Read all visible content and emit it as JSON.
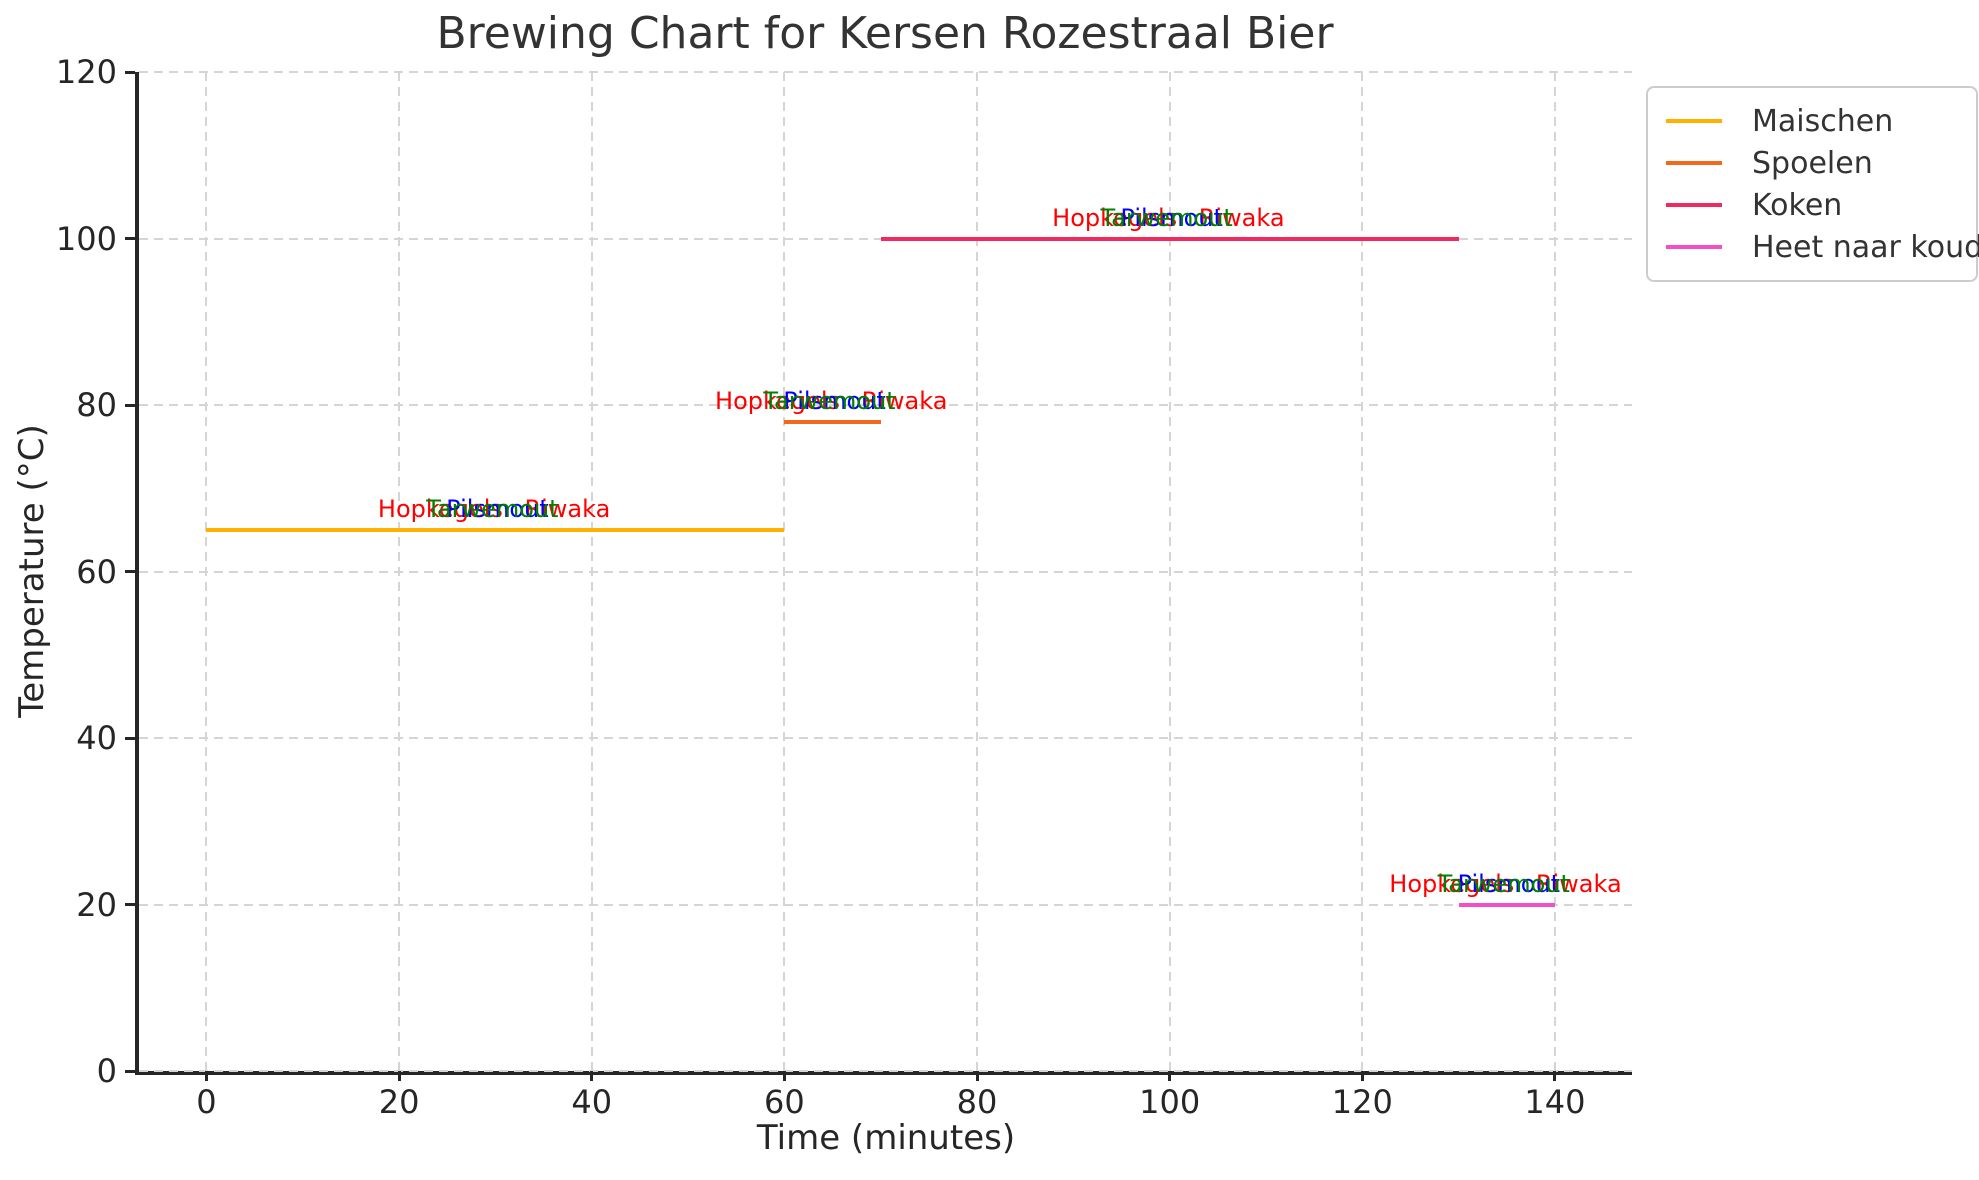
{
  "chart_data": {
    "type": "line",
    "title": "Brewing Chart for Kersen Rozestraal Bier",
    "xlabel": "Time (minutes)",
    "ylabel": "Temperature (°C)",
    "xlim": [
      -7,
      148
    ],
    "ylim": [
      0,
      120
    ],
    "x_ticks": [
      0,
      20,
      40,
      60,
      80,
      100,
      120,
      140
    ],
    "y_ticks": [
      0,
      20,
      40,
      60,
      80,
      100,
      120
    ],
    "grid": true,
    "grid_style": "dashed",
    "legend_position": "upper right",
    "series": [
      {
        "name": "Maischen",
        "color": "#FFB000",
        "x": [
          0,
          60
        ],
        "y": [
          65,
          65
        ]
      },
      {
        "name": "Spoelen",
        "color": "#F2691C",
        "x": [
          60,
          70
        ],
        "y": [
          78,
          78
        ]
      },
      {
        "name": "Koken",
        "color": "#EE2A5E",
        "x": [
          70,
          130
        ],
        "y": [
          100,
          100
        ]
      },
      {
        "name": "Heet naar koud",
        "color": "#F44FC6",
        "x": [
          130,
          140
        ],
        "y": [
          20,
          20
        ]
      }
    ],
    "annotations": [
      {
        "x": 30,
        "y": 65,
        "ingredients": [
          {
            "text": "Hopkegels",
            "color": "#FF0000"
          },
          {
            "text": "Riwaka",
            "color": "#FF0000"
          },
          {
            "text": "Pilsmout",
            "color": "#0000FF"
          },
          {
            "text": "Tarwemout",
            "color": "#008000"
          }
        ]
      },
      {
        "x": 65,
        "y": 78,
        "ingredients": [
          {
            "text": "Hopkegels",
            "color": "#FF0000"
          },
          {
            "text": "Riwaka",
            "color": "#FF0000"
          },
          {
            "text": "Pilsmout",
            "color": "#0000FF"
          },
          {
            "text": "Tarwemout",
            "color": "#008000"
          }
        ]
      },
      {
        "x": 100,
        "y": 100,
        "ingredients": [
          {
            "text": "Hopkegels",
            "color": "#FF0000"
          },
          {
            "text": "Riwaka",
            "color": "#FF0000"
          },
          {
            "text": "Pilsmout",
            "color": "#0000FF"
          },
          {
            "text": "Tarwemout",
            "color": "#008000"
          }
        ]
      },
      {
        "x": 135,
        "y": 20,
        "ingredients": [
          {
            "text": "Hopkegels",
            "color": "#FF0000"
          },
          {
            "text": "Riwaka",
            "color": "#FF0000"
          },
          {
            "text": "Pilsmout",
            "color": "#0000FF"
          },
          {
            "text": "Tarwemout",
            "color": "#008000"
          }
        ]
      }
    ],
    "legend": [
      "Maischen",
      "Spoelen",
      "Koken",
      "Heet naar koud"
    ]
  }
}
